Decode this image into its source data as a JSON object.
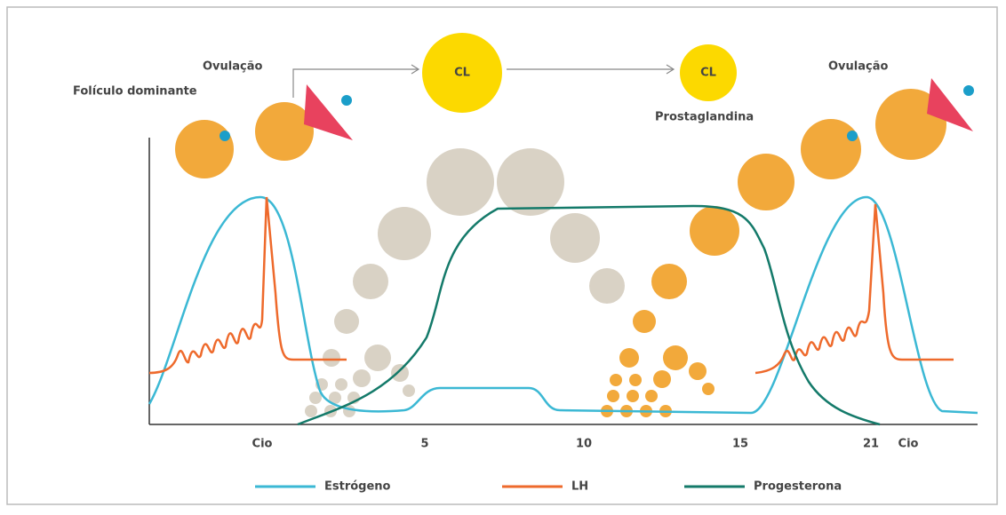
{
  "labels": {
    "ovulation_left": "Ovulação",
    "dominant_follicle": "Folículo dominante",
    "cl_large": "CL",
    "cl_small": "CL",
    "prostaglandin": "Prostaglandina",
    "ovulation_right": "Ovulação"
  },
  "x_axis": {
    "ticks": [
      "Cio",
      "5",
      "10",
      "15",
      "21",
      "Cio"
    ]
  },
  "legend": [
    {
      "name": "Estrógeno",
      "color": "#3bb8d4"
    },
    {
      "name": "LH",
      "color": "#ee6a2c"
    },
    {
      "name": "Progesterona",
      "color": "#147a6a"
    }
  ]
}
